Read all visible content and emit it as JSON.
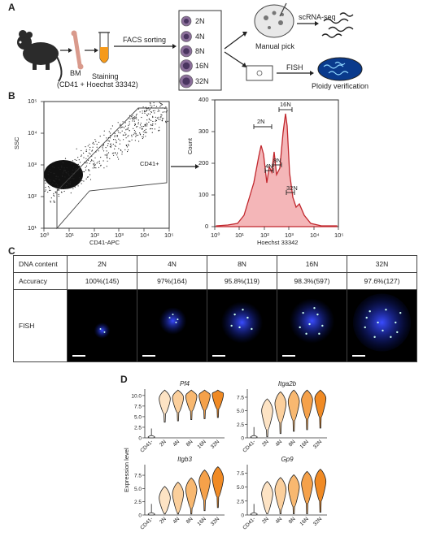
{
  "panels": {
    "a": "A",
    "b": "B",
    "c": "C",
    "d": "D"
  },
  "panel_a": {
    "bm_label": "BM",
    "staining_label": "Staining",
    "staining_sub": "(CD41 + Hoechst 33342)",
    "facs_label": "FACS sorting",
    "ploidy_classes": [
      "2N",
      "4N",
      "8N",
      "16N",
      "32N"
    ],
    "manual_pick_label": "Manual pick",
    "scrnaseq_label": "scRNA-seq",
    "fish_label": "FISH",
    "ploidy_verification_label": "Ploidy verification"
  },
  "panel_b": {
    "flow": {
      "ylabel": "SSC",
      "xlabel": "CD41-APC",
      "gate_label": "CD41+",
      "x_ticks": [
        "10⁰",
        "10¹",
        "10²",
        "10³",
        "10⁴",
        "10⁵"
      ],
      "y_ticks": [
        "10⁵",
        "10⁴",
        "10³",
        "10²",
        "10¹"
      ]
    },
    "hist": {
      "ylabel": "Count",
      "xlabel": "Hoechst 33342",
      "y_ticks": [
        "400",
        "300",
        "200",
        "100",
        "0"
      ],
      "x_ticks": [
        "10⁰",
        "10¹",
        "10²",
        "10³",
        "10⁴",
        "10⁵"
      ],
      "peak_labels": [
        "2N",
        "4N",
        "8N",
        "16N",
        "32N"
      ]
    }
  },
  "panel_c": {
    "row_dna": "DNA content",
    "row_accuracy": "Accuracy",
    "row_fish": "FISH",
    "columns": [
      "2N",
      "4N",
      "8N",
      "16N",
      "32N"
    ],
    "accuracy": [
      "100%(145)",
      "97%(164)",
      "95.8%(119)",
      "98.3%(597)",
      "97.6%(127)"
    ]
  },
  "chart_data": {
    "type": "violin",
    "ylabel": "Expression level",
    "categories": [
      "CD41-",
      "2N",
      "4N",
      "8N",
      "16N",
      "32N"
    ],
    "colors": [
      "#ffffff",
      "#fde3c4",
      "#fbcf9c",
      "#f8b870",
      "#f5a14a",
      "#f08a24"
    ],
    "subplots": [
      {
        "gene": "Pf4",
        "y_ticks": [
          0,
          2.5,
          5.0,
          7.5,
          10.0
        ],
        "ylim": [
          0,
          11.5
        ],
        "medians": [
          0.2,
          9.2,
          9.5,
          9.8,
          10.0,
          10.3
        ]
      },
      {
        "gene": "Itga2b",
        "y_ticks": [
          0,
          2.5,
          5.0,
          7.5
        ],
        "ylim": [
          0,
          9
        ],
        "medians": [
          0.2,
          5.0,
          6.3,
          6.7,
          7.0,
          7.3
        ]
      },
      {
        "gene": "Itgb3",
        "y_ticks": [
          0,
          2.5,
          5.0,
          7.5
        ],
        "ylim": [
          0,
          9.5
        ],
        "medians": [
          0.1,
          3.2,
          4.0,
          4.8,
          6.3,
          6.9
        ]
      },
      {
        "gene": "Gp9",
        "y_ticks": [
          0,
          2.5,
          5.0,
          7.5
        ],
        "ylim": [
          0,
          9
        ],
        "medians": [
          0.3,
          3.8,
          4.5,
          5.0,
          5.6,
          6.0
        ]
      }
    ]
  }
}
